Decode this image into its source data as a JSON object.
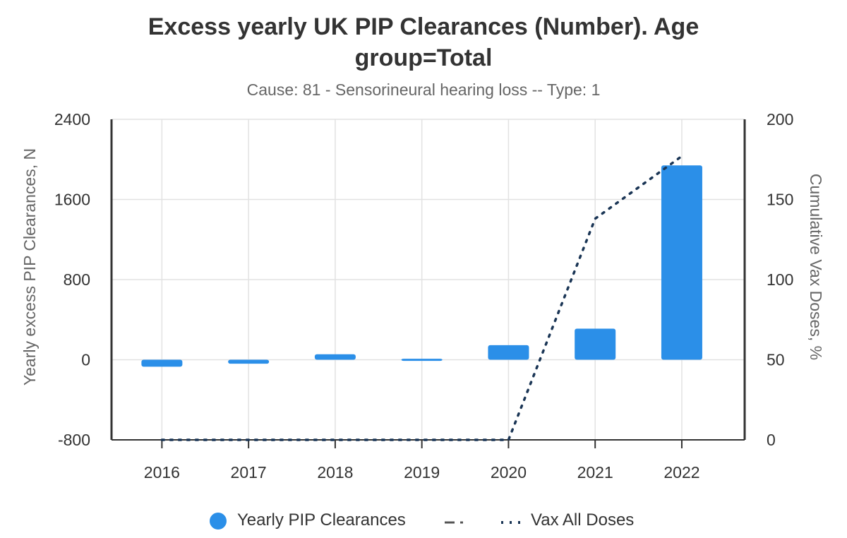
{
  "chart_data": {
    "type": "bar",
    "title": "Excess yearly UK PIP Clearances (Number). Age group=Total",
    "subtitle": "Cause: 81 - Sensorineural hearing loss -- Type: 1",
    "categories": [
      "2016",
      "2017",
      "2018",
      "2019",
      "2020",
      "2021",
      "2022"
    ],
    "series": [
      {
        "name": "Yearly PIP Clearances",
        "type": "bar",
        "axis": "left",
        "color": "#2b8fe8",
        "values": [
          -70,
          -40,
          55,
          10,
          145,
          310,
          1940
        ]
      },
      {
        "name": "Vax All Doses",
        "type": "line",
        "style": "dotted",
        "axis": "right",
        "color": "#1a3555",
        "values": [
          0,
          0,
          0,
          0,
          0,
          138,
          177
        ]
      }
    ],
    "legend_extra_marker": {
      "style": "dash-dot",
      "color": "#555555"
    },
    "y_left": {
      "label": "Yearly excess PIP Clearances, N",
      "min": -800,
      "max": 2400,
      "ticks": [
        -800,
        0,
        800,
        1600,
        2400
      ]
    },
    "y_right": {
      "label": "Cumulative Vax Doses, %",
      "min": 0,
      "max": 200,
      "ticks": [
        0,
        50,
        100,
        150,
        200
      ]
    },
    "grid": true,
    "legend_position": "bottom"
  }
}
